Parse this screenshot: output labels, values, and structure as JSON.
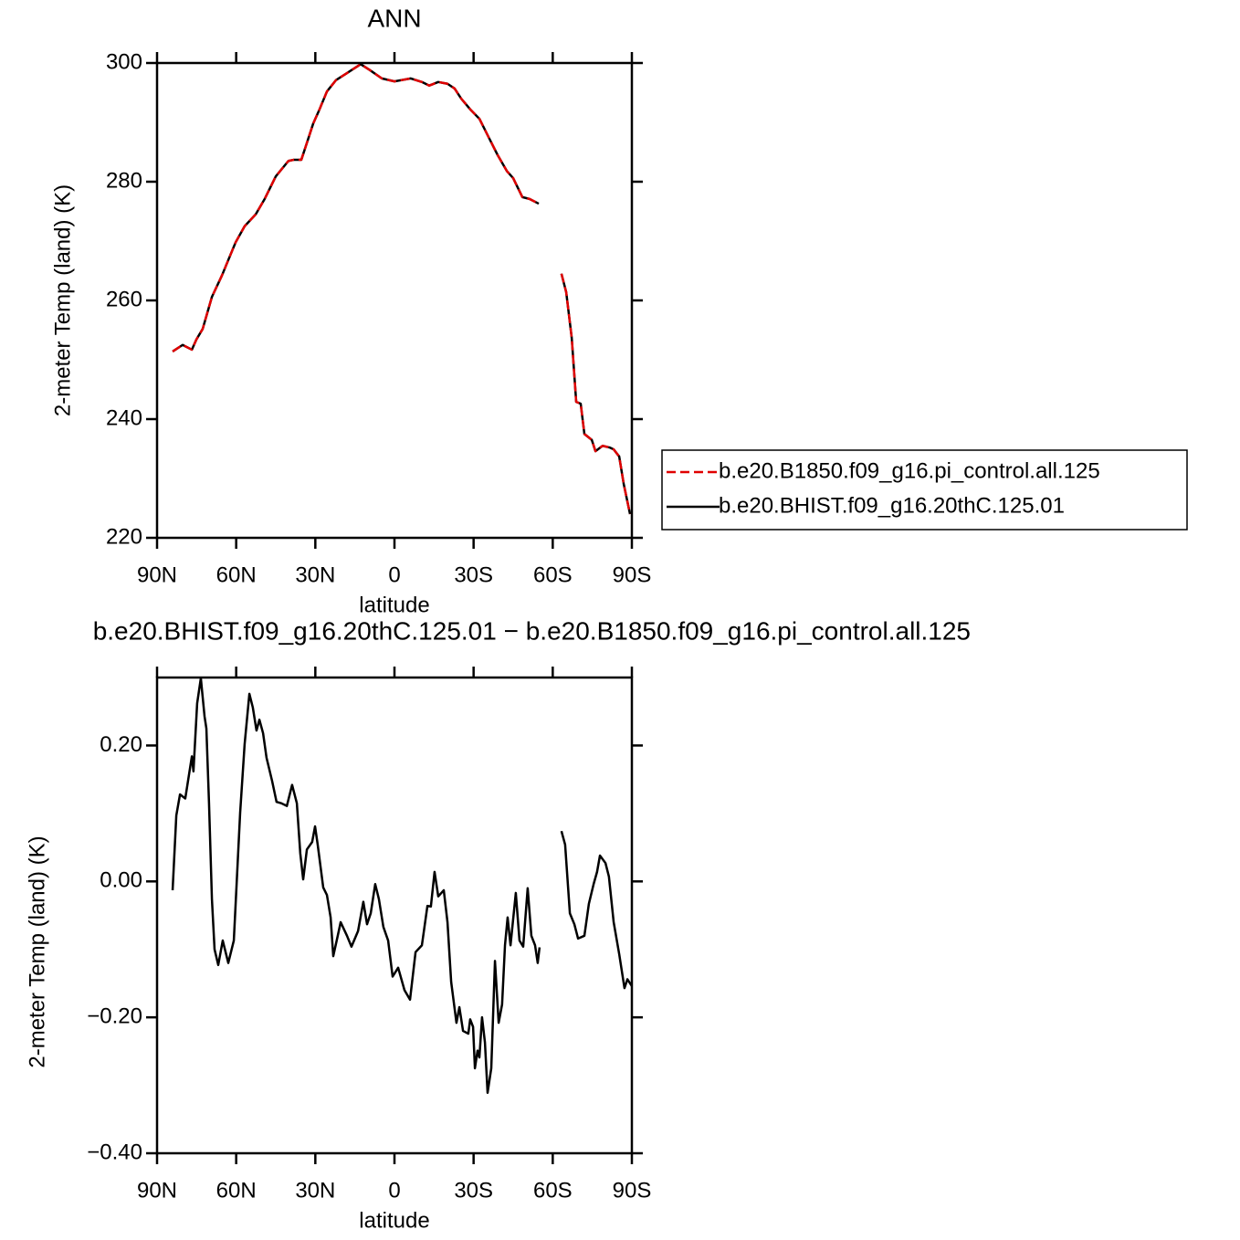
{
  "chart_data": [
    {
      "type": "line",
      "title": "ANN",
      "xlabel": "latitude",
      "ylabel": "2-meter Temp (land) (K)",
      "x": [
        84.1,
        80.3,
        76.8,
        75.1,
        72.7,
        69.2,
        65.4,
        63.0,
        60.2,
        56.8,
        52.6,
        49.2,
        45.0,
        40.2,
        38.1,
        35.3,
        33.6,
        30.8,
        28.4,
        25.6,
        22.2,
        18.0,
        12.8,
        9.3,
        4.8,
        0.0,
        -6.2,
        -10.4,
        -13.2,
        -16.6,
        -20.1,
        -22.8,
        -25.3,
        -28.7,
        -32.2,
        -35.7,
        -39.1,
        -42.6,
        -45.0,
        -48.5,
        -51.2,
        -54.7,
        -59.0,
        -63.3,
        -65.1,
        -67.2,
        -68.9,
        -70.6,
        -72.0,
        -74.8,
        -76.2,
        -78.9,
        -81.7,
        -83.1,
        -85.2,
        -86.9,
        -89.3
      ],
      "series": [
        {
          "name": "b.e20.B1850.f09_g16.pi_control.all.125",
          "color": "#e00000",
          "dashed": true,
          "values": [
            251.4,
            252.5,
            251.7,
            253.4,
            255.2,
            260.6,
            264.2,
            266.8,
            269.8,
            272.5,
            274.5,
            277.1,
            280.9,
            283.5,
            283.7,
            283.7,
            286.0,
            289.8,
            292.2,
            295.2,
            297.1,
            298.3,
            299.8,
            298.8,
            297.4,
            296.9,
            297.4,
            296.8,
            296.2,
            296.8,
            296.5,
            295.7,
            294.0,
            292.2,
            290.6,
            287.5,
            284.5,
            281.8,
            280.6,
            277.4,
            277.1,
            276.3,
            null,
            264.5,
            261.4,
            253.7,
            242.9,
            242.6,
            237.5,
            236.5,
            234.6,
            235.5,
            235.2,
            234.9,
            233.7,
            229.1,
            224.0
          ]
        },
        {
          "name": "b.e20.BHIST.f09_g16.20thC.125.01",
          "color": "#000000",
          "dashed": false,
          "values": [
            251.4,
            252.5,
            251.7,
            253.4,
            255.2,
            260.6,
            264.2,
            266.8,
            269.8,
            272.5,
            274.5,
            277.1,
            280.9,
            283.5,
            283.7,
            283.7,
            286.0,
            289.8,
            292.2,
            295.2,
            297.1,
            298.3,
            299.8,
            298.8,
            297.4,
            296.9,
            297.4,
            296.8,
            296.2,
            296.8,
            296.5,
            295.7,
            294.0,
            292.2,
            290.6,
            287.5,
            284.5,
            281.8,
            280.6,
            277.4,
            277.1,
            276.3,
            null,
            264.5,
            261.4,
            253.7,
            242.9,
            242.6,
            237.5,
            236.5,
            234.6,
            235.5,
            235.2,
            234.9,
            233.7,
            229.1,
            224.0
          ]
        }
      ],
      "xlim": [
        90,
        -90
      ],
      "xticks": [
        {
          "value": 90,
          "label": "90N"
        },
        {
          "value": 60,
          "label": "60N"
        },
        {
          "value": 30,
          "label": "30N"
        },
        0,
        {
          "value": -30,
          "label": "30S"
        },
        {
          "value": -60,
          "label": "60S"
        },
        {
          "value": -90,
          "label": "90S"
        }
      ],
      "ylim": [
        220,
        300
      ],
      "yticks": [
        220,
        240,
        260,
        280,
        300
      ],
      "legend": "right"
    },
    {
      "type": "line",
      "title": "b.e20.BHIST.f09_g16.20thC.125.01 − b.e20.B1850.f09_g16.pi_control.all.125",
      "xlabel": "latitude",
      "ylabel": "2-meter Temp (land) (K)",
      "x": [
        84.1,
        82.7,
        81.3,
        79.3,
        76.8,
        76.2,
        74.8,
        73.4,
        72.0,
        71.3,
        70.3,
        69.2,
        68.2,
        66.8,
        65.1,
        63.0,
        60.9,
        58.5,
        56.8,
        55.0,
        53.7,
        52.3,
        51.2,
        49.8,
        48.5,
        46.4,
        44.7,
        42.9,
        40.8,
        38.8,
        37.0,
        35.7,
        34.6,
        33.2,
        31.2,
        30.1,
        29.1,
        27.0,
        25.6,
        24.2,
        23.2,
        21.5,
        20.4,
        18.0,
        16.3,
        13.8,
        11.8,
        10.4,
        9.0,
        7.3,
        5.9,
        4.2,
        2.4,
        0.7,
        -1.4,
        -3.8,
        -5.9,
        -8.0,
        -10.4,
        -12.5,
        -13.8,
        -15.2,
        -16.6,
        -18.7,
        -20.1,
        -21.5,
        -23.5,
        -24.6,
        -26.0,
        -28.0,
        -28.7,
        -29.8,
        -30.5,
        -31.5,
        -32.2,
        -33.2,
        -34.3,
        -35.3,
        -36.7,
        -38.1,
        -39.5,
        -40.8,
        -41.9,
        -42.9,
        -44.0,
        -46.0,
        -47.4,
        -48.8,
        -50.5,
        -51.9,
        -53.3,
        -54.3,
        -55.0,
        -59.0,
        -63.3,
        -64.7,
        -66.5,
        -68.2,
        -69.6,
        -72.0,
        -73.7,
        -75.5,
        -76.8,
        -77.9,
        -80.0,
        -81.3,
        -83.1,
        -85.2,
        -87.2,
        -88.3,
        -90.0
      ],
      "series": [
        {
          "color": "#000000",
          "dashed": false,
          "values": [
            -0.013,
            0.097,
            0.128,
            0.122,
            0.184,
            0.162,
            0.262,
            0.299,
            0.243,
            0.225,
            0.115,
            -0.026,
            -0.1,
            -0.123,
            -0.087,
            -0.12,
            -0.087,
            0.101,
            0.202,
            0.276,
            0.256,
            0.222,
            0.238,
            0.218,
            0.182,
            0.148,
            0.117,
            0.115,
            0.111,
            0.142,
            0.115,
            0.041,
            0.003,
            0.047,
            0.058,
            0.081,
            0.054,
            -0.009,
            -0.02,
            -0.053,
            -0.11,
            -0.08,
            -0.06,
            -0.08,
            -0.096,
            -0.073,
            -0.03,
            -0.063,
            -0.047,
            -0.004,
            -0.026,
            -0.067,
            -0.087,
            -0.14,
            -0.127,
            -0.16,
            -0.174,
            -0.104,
            -0.094,
            -0.036,
            -0.037,
            0.014,
            -0.022,
            -0.013,
            -0.06,
            -0.148,
            -0.208,
            -0.185,
            -0.22,
            -0.224,
            -0.203,
            -0.214,
            -0.275,
            -0.249,
            -0.259,
            -0.2,
            -0.237,
            -0.311,
            -0.275,
            -0.117,
            -0.208,
            -0.181,
            -0.094,
            -0.053,
            -0.094,
            -0.017,
            -0.087,
            -0.096,
            -0.01,
            -0.08,
            -0.094,
            -0.12,
            -0.097,
            null,
            0.074,
            0.054,
            -0.047,
            -0.063,
            -0.084,
            -0.08,
            -0.033,
            -0.004,
            0.014,
            0.038,
            0.027,
            0.007,
            -0.06,
            -0.107,
            -0.157,
            -0.144,
            -0.154
          ]
        }
      ],
      "xlim": [
        90,
        -90
      ],
      "xticks": [
        {
          "value": 90,
          "label": "90N"
        },
        {
          "value": 60,
          "label": "60N"
        },
        {
          "value": 30,
          "label": "30N"
        },
        0,
        {
          "value": -30,
          "label": "30S"
        },
        {
          "value": -60,
          "label": "60S"
        },
        {
          "value": -90,
          "label": "90S"
        }
      ],
      "ylim": [
        -0.4,
        0.3
      ],
      "yticks": [
        {
          "value": -0.4,
          "label": "−0.40"
        },
        {
          "value": -0.2,
          "label": "−0.20"
        },
        {
          "value": 0,
          "label": "0.00"
        },
        {
          "value": 0.2,
          "label": "0.20"
        }
      ]
    }
  ]
}
